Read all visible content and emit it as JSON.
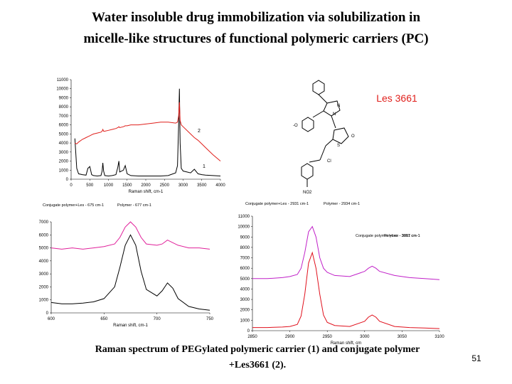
{
  "title": [
    "Water insoluble drug immobilization via solubilization in",
    "micelle-like structures of functional polymeric carriers (PC)"
  ],
  "compound_label": "Les 3661",
  "structure_labels": [
    "N",
    "N",
    "O",
    "S",
    "-O",
    "Cl",
    "NO2"
  ],
  "caption": [
    "Raman spectrum of PEGylated polymeric carrier  (1) and conjugate polymer",
    "+Les3661 (2)."
  ],
  "page_number": "51",
  "chart_data": [
    {
      "type": "line",
      "xlabel": "Raman shift, cm-1",
      "x": [
        100,
        150,
        200,
        300,
        400,
        450,
        500,
        550,
        600,
        700,
        800,
        830,
        850,
        870,
        900,
        1000,
        1100,
        1200,
        1250,
        1280,
        1300,
        1400,
        1450,
        1500,
        1600,
        1800,
        2000,
        2200,
        2400,
        2600,
        2800,
        2850,
        2880,
        2900,
        2920,
        2950,
        3000,
        3200,
        3300,
        3400,
        3500,
        3600,
        3800,
        4000
      ],
      "series": [
        {
          "name": "1",
          "color": "#000000",
          "values": [
            4500,
            1200,
            600,
            500,
            450,
            1200,
            1400,
            500,
            400,
            350,
            400,
            900,
            1800,
            900,
            400,
            350,
            400,
            500,
            1300,
            2000,
            800,
            1000,
            1500,
            600,
            400,
            350,
            350,
            350,
            350,
            400,
            700,
            1500,
            6000,
            10000,
            4000,
            1200,
            900,
            700,
            1100,
            600,
            500,
            450,
            400,
            350
          ]
        },
        {
          "name": "2",
          "color": "#e0201c",
          "values": [
            4000,
            3900,
            4100,
            4400,
            4600,
            4700,
            4800,
            4900,
            5000,
            5100,
            5200,
            5300,
            5500,
            5300,
            5300,
            5400,
            5500,
            5600,
            5700,
            5800,
            5700,
            5800,
            5900,
            5900,
            6000,
            6000,
            6100,
            6200,
            6300,
            6300,
            6200,
            6300,
            7000,
            8500,
            6500,
            6000,
            5800,
            5000,
            4600,
            4300,
            3900,
            3500,
            2700,
            2000
          ]
        }
      ],
      "xlim": [
        0,
        4000
      ],
      "xticks": [
        0,
        500,
        1000,
        1500,
        2000,
        2500,
        3000,
        3500,
        4000
      ],
      "ylim": [
        0,
        11000
      ],
      "yticks": [
        0,
        1000,
        2000,
        3000,
        4000,
        5000,
        6000,
        7000,
        8000,
        9000,
        10000,
        11000
      ]
    },
    {
      "type": "line",
      "xlabel": "Raman shift, cm-1",
      "annotations": [
        "Conjugate polymer+Les - 675 cm-1",
        "Polymer - 677 cm-1"
      ],
      "x": [
        600,
        610,
        620,
        630,
        640,
        650,
        660,
        665,
        670,
        675,
        680,
        685,
        690,
        700,
        705,
        710,
        715,
        720,
        730,
        740,
        750
      ],
      "series": [
        {
          "name": "2",
          "color": "#e0209a",
          "values": [
            5000,
            4900,
            5000,
            4900,
            5000,
            5100,
            5300,
            5800,
            6600,
            7000,
            6600,
            5800,
            5300,
            5200,
            5300,
            5600,
            5400,
            5200,
            5000,
            5000,
            4900
          ]
        },
        {
          "name": "1",
          "color": "#000000",
          "values": [
            800,
            700,
            700,
            750,
            850,
            1100,
            2000,
            3500,
            5200,
            6000,
            5200,
            3200,
            1800,
            1300,
            1700,
            2300,
            1900,
            1100,
            500,
            300,
            200
          ]
        }
      ],
      "xlim": [
        600,
        750
      ],
      "xticks": [
        600,
        650,
        700,
        750
      ],
      "ylim": [
        0,
        7000
      ],
      "yticks": [
        0,
        1000,
        2000,
        3000,
        4000,
        5000,
        6000,
        7000
      ]
    },
    {
      "type": "line",
      "xlabel": "Raman shift, cm",
      "annotations": [
        "Conjugate polymer+Les - 2931 cm-1",
        "Polymer - 2934 cm-1",
        "Conjugate polymer +Les - 3007 cm-1",
        "Polymer - 3011 cm-1"
      ],
      "x": [
        2850,
        2870,
        2890,
        2900,
        2910,
        2915,
        2920,
        2925,
        2930,
        2935,
        2940,
        2945,
        2950,
        2960,
        2980,
        3000,
        3005,
        3010,
        3015,
        3020,
        3040,
        3060,
        3080,
        3100
      ],
      "series": [
        {
          "name": "2",
          "color": "#c020c8",
          "values": [
            5000,
            5000,
            5100,
            5200,
            5400,
            6000,
            7500,
            9500,
            10000,
            9000,
            7000,
            6000,
            5600,
            5300,
            5200,
            5700,
            6000,
            6200,
            6000,
            5700,
            5300,
            5100,
            5000,
            4900
          ]
        },
        {
          "name": "1",
          "color": "#e0101c",
          "values": [
            300,
            300,
            350,
            400,
            600,
            1400,
            3500,
            6500,
            7500,
            6000,
            3500,
            1500,
            800,
            500,
            400,
            900,
            1300,
            1500,
            1300,
            900,
            400,
            300,
            250,
            200
          ]
        }
      ],
      "xlim": [
        2850,
        3100
      ],
      "xticks": [
        2850,
        2900,
        2950,
        3000,
        3050,
        3100
      ],
      "ylim": [
        0,
        11000
      ],
      "yticks": [
        0,
        1000,
        2000,
        3000,
        4000,
        5000,
        6000,
        7000,
        8000,
        9000,
        10000,
        11000
      ]
    }
  ]
}
